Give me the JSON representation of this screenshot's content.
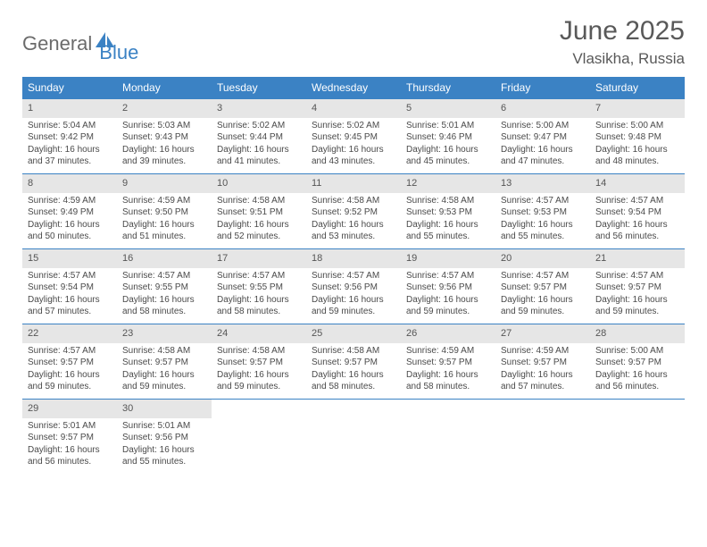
{
  "branding": {
    "logo_part1": "General",
    "logo_part2": "Blue",
    "logo_fill": "#3b82c4"
  },
  "header": {
    "title": "June 2025",
    "location": "Vlasikha, Russia"
  },
  "colors": {
    "header_bg": "#3b82c4",
    "header_text": "#ffffff",
    "daynum_bg": "#e6e6e6",
    "cell_border": "#3b82c4",
    "body_text": "#4a4a4a",
    "title_text": "#595959"
  },
  "weekdays": [
    "Sunday",
    "Monday",
    "Tuesday",
    "Wednesday",
    "Thursday",
    "Friday",
    "Saturday"
  ],
  "days": [
    {
      "n": "1",
      "sunrise": "5:04 AM",
      "sunset": "9:42 PM",
      "daylight": "16 hours and 37 minutes."
    },
    {
      "n": "2",
      "sunrise": "5:03 AM",
      "sunset": "9:43 PM",
      "daylight": "16 hours and 39 minutes."
    },
    {
      "n": "3",
      "sunrise": "5:02 AM",
      "sunset": "9:44 PM",
      "daylight": "16 hours and 41 minutes."
    },
    {
      "n": "4",
      "sunrise": "5:02 AM",
      "sunset": "9:45 PM",
      "daylight": "16 hours and 43 minutes."
    },
    {
      "n": "5",
      "sunrise": "5:01 AM",
      "sunset": "9:46 PM",
      "daylight": "16 hours and 45 minutes."
    },
    {
      "n": "6",
      "sunrise": "5:00 AM",
      "sunset": "9:47 PM",
      "daylight": "16 hours and 47 minutes."
    },
    {
      "n": "7",
      "sunrise": "5:00 AM",
      "sunset": "9:48 PM",
      "daylight": "16 hours and 48 minutes."
    },
    {
      "n": "8",
      "sunrise": "4:59 AM",
      "sunset": "9:49 PM",
      "daylight": "16 hours and 50 minutes."
    },
    {
      "n": "9",
      "sunrise": "4:59 AM",
      "sunset": "9:50 PM",
      "daylight": "16 hours and 51 minutes."
    },
    {
      "n": "10",
      "sunrise": "4:58 AM",
      "sunset": "9:51 PM",
      "daylight": "16 hours and 52 minutes."
    },
    {
      "n": "11",
      "sunrise": "4:58 AM",
      "sunset": "9:52 PM",
      "daylight": "16 hours and 53 minutes."
    },
    {
      "n": "12",
      "sunrise": "4:58 AM",
      "sunset": "9:53 PM",
      "daylight": "16 hours and 55 minutes."
    },
    {
      "n": "13",
      "sunrise": "4:57 AM",
      "sunset": "9:53 PM",
      "daylight": "16 hours and 55 minutes."
    },
    {
      "n": "14",
      "sunrise": "4:57 AM",
      "sunset": "9:54 PM",
      "daylight": "16 hours and 56 minutes."
    },
    {
      "n": "15",
      "sunrise": "4:57 AM",
      "sunset": "9:54 PM",
      "daylight": "16 hours and 57 minutes."
    },
    {
      "n": "16",
      "sunrise": "4:57 AM",
      "sunset": "9:55 PM",
      "daylight": "16 hours and 58 minutes."
    },
    {
      "n": "17",
      "sunrise": "4:57 AM",
      "sunset": "9:55 PM",
      "daylight": "16 hours and 58 minutes."
    },
    {
      "n": "18",
      "sunrise": "4:57 AM",
      "sunset": "9:56 PM",
      "daylight": "16 hours and 59 minutes."
    },
    {
      "n": "19",
      "sunrise": "4:57 AM",
      "sunset": "9:56 PM",
      "daylight": "16 hours and 59 minutes."
    },
    {
      "n": "20",
      "sunrise": "4:57 AM",
      "sunset": "9:57 PM",
      "daylight": "16 hours and 59 minutes."
    },
    {
      "n": "21",
      "sunrise": "4:57 AM",
      "sunset": "9:57 PM",
      "daylight": "16 hours and 59 minutes."
    },
    {
      "n": "22",
      "sunrise": "4:57 AM",
      "sunset": "9:57 PM",
      "daylight": "16 hours and 59 minutes."
    },
    {
      "n": "23",
      "sunrise": "4:58 AM",
      "sunset": "9:57 PM",
      "daylight": "16 hours and 59 minutes."
    },
    {
      "n": "24",
      "sunrise": "4:58 AM",
      "sunset": "9:57 PM",
      "daylight": "16 hours and 59 minutes."
    },
    {
      "n": "25",
      "sunrise": "4:58 AM",
      "sunset": "9:57 PM",
      "daylight": "16 hours and 58 minutes."
    },
    {
      "n": "26",
      "sunrise": "4:59 AM",
      "sunset": "9:57 PM",
      "daylight": "16 hours and 58 minutes."
    },
    {
      "n": "27",
      "sunrise": "4:59 AM",
      "sunset": "9:57 PM",
      "daylight": "16 hours and 57 minutes."
    },
    {
      "n": "28",
      "sunrise": "5:00 AM",
      "sunset": "9:57 PM",
      "daylight": "16 hours and 56 minutes."
    },
    {
      "n": "29",
      "sunrise": "5:01 AM",
      "sunset": "9:57 PM",
      "daylight": "16 hours and 56 minutes."
    },
    {
      "n": "30",
      "sunrise": "5:01 AM",
      "sunset": "9:56 PM",
      "daylight": "16 hours and 55 minutes."
    }
  ],
  "labels": {
    "sunrise_prefix": "Sunrise: ",
    "sunset_prefix": "Sunset: ",
    "daylight_prefix": "Daylight: "
  }
}
